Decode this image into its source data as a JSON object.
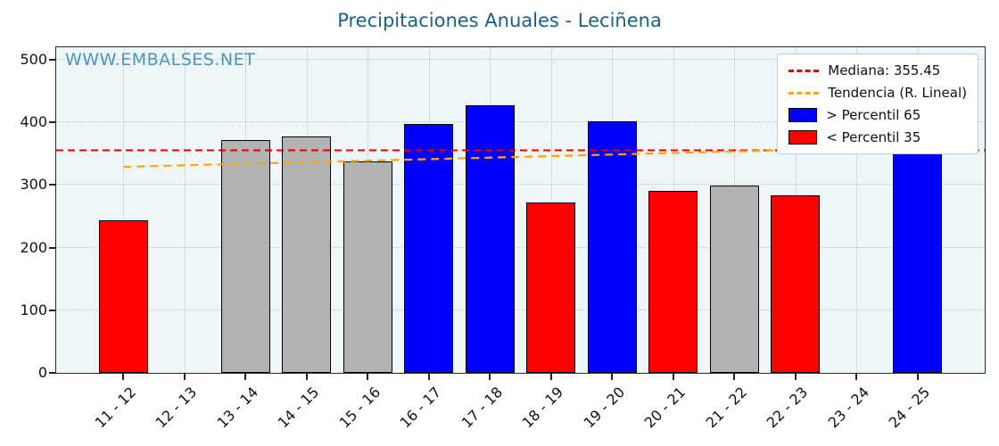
{
  "title": "Precipitaciones Anuales - Leciñena",
  "watermark": "WWW.EMBALSES.NET",
  "legend": {
    "mediana": "Mediana: 355.45",
    "tendencia": "Tendencia (R. Lineal)",
    "p65": "> Percentil 65",
    "p35": "< Percentil 35"
  },
  "colors": {
    "blue": "#0000ff",
    "red": "#ff0000",
    "gray": "#b3b3b3",
    "median_line": "#e00000",
    "trend_line": "#ffa500"
  },
  "chart_data": {
    "type": "bar",
    "title": "Precipitaciones Anuales - Leciñena",
    "categories": [
      "11 - 12",
      "12 - 13",
      "13 - 14",
      "14 - 15",
      "15 - 16",
      "16 - 17",
      "17 - 18",
      "18 - 19",
      "19 - 20",
      "20 - 21",
      "21 - 22",
      "22 - 23",
      "23 - 24",
      "24 - 25"
    ],
    "values": [
      243,
      null,
      372,
      377,
      338,
      397,
      427,
      272,
      402,
      290,
      299,
      283,
      null,
      437
    ],
    "bar_colors": [
      "red",
      null,
      "gray",
      "gray",
      "gray",
      "blue",
      "blue",
      "red",
      "blue",
      "red",
      "gray",
      "red",
      null,
      "blue"
    ],
    "bar_width_units": 0.8,
    "median": 355.45,
    "trend_line": {
      "start_value": 329,
      "end_value": 361
    },
    "ylim": [
      0,
      520
    ],
    "yticks": [
      0,
      100,
      200,
      300,
      400,
      500
    ],
    "xlim": [
      -1.1,
      14.1
    ],
    "grid": true,
    "legend_position": "upper right",
    "xlabel": "",
    "ylabel": ""
  }
}
